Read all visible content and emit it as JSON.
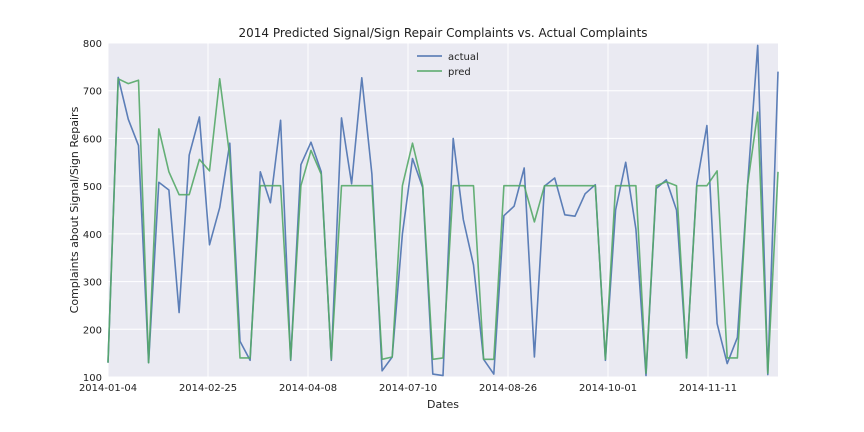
{
  "chart_data": {
    "type": "line",
    "title": "2014 Predicted Signal/Sign Repair Complaints vs. Actual Complaints",
    "xlabel": "Dates",
    "ylabel": "Complaints about Signal/Sign Repairs",
    "ylim": [
      100,
      800
    ],
    "yticks": [
      100,
      200,
      300,
      400,
      500,
      600,
      700,
      800
    ],
    "x_range": [
      0,
      67
    ],
    "xticks": [
      {
        "x": 0,
        "label": "2014-01-04"
      },
      {
        "x": 10,
        "label": "2014-02-25"
      },
      {
        "x": 20,
        "label": "2014-04-08"
      },
      {
        "x": 30,
        "label": "2014-07-10"
      },
      {
        "x": 40,
        "label": "2014-08-26"
      },
      {
        "x": 50,
        "label": "2014-10-01"
      },
      {
        "x": 60,
        "label": "2014-11-11"
      }
    ],
    "grid": true,
    "legend_position": "top-center",
    "colors": {
      "background": "#eaeaf2",
      "actual": "#4c72b0",
      "pred": "#55a868"
    },
    "series": [
      {
        "name": "actual",
        "values": [
          130,
          728,
          640,
          585,
          130,
          508,
          492,
          235,
          565,
          645,
          377,
          455,
          590,
          175,
          135,
          530,
          465,
          638,
          135,
          545,
          592,
          530,
          135,
          643,
          505,
          727,
          525,
          113,
          142,
          400,
          558,
          497,
          106,
          103,
          600,
          430,
          335,
          137,
          106,
          438,
          458,
          538,
          142,
          500,
          517,
          440,
          437,
          484,
          503,
          135,
          450,
          550,
          410,
          103,
          495,
          513,
          450,
          140,
          505,
          627,
          212,
          128,
          183,
          500,
          795,
          105,
          740
        ]
      },
      {
        "name": "pred",
        "values": [
          130,
          725,
          715,
          722,
          130,
          620,
          530,
          482,
          482,
          556,
          532,
          725,
          562,
          140,
          140,
          501,
          501,
          501,
          137,
          501,
          575,
          525,
          137,
          501,
          501,
          501,
          501,
          137,
          142,
          501,
          590,
          501,
          137,
          140,
          501,
          501,
          501,
          137,
          137,
          501,
          501,
          501,
          425,
          501,
          501,
          501,
          501,
          501,
          501,
          137,
          501,
          501,
          501,
          108,
          501,
          509,
          501,
          140,
          501,
          501,
          532,
          140,
          140,
          501,
          655,
          108,
          530
        ]
      }
    ]
  }
}
